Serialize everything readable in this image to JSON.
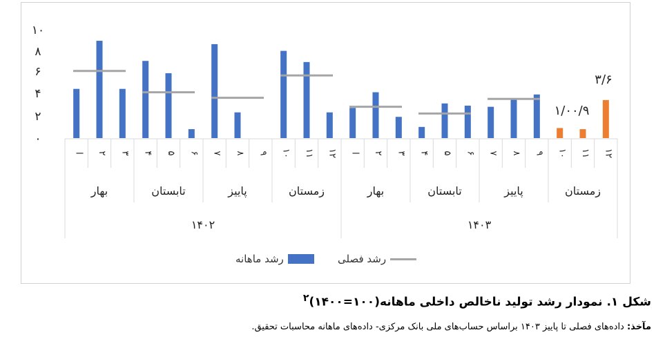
{
  "chart_data": {
    "type": "bar",
    "title": "",
    "ylim": [
      0,
      10
    ],
    "yticks": [
      "۰",
      "۲",
      "۴",
      "۶",
      "۸",
      "۱۰"
    ],
    "month_labels": [
      "ا",
      "۲",
      "۳",
      "۴",
      "۵",
      "۶",
      "۷",
      "۸",
      "۹",
      "۱۰",
      "۱۱",
      "۱۲"
    ],
    "years": [
      {
        "label": "۱۴۰۲",
        "seasons": [
          {
            "name": "بهار",
            "monthly": [
              4.4,
              8.7,
              4.4
            ],
            "seasonal": 6.0
          },
          {
            "name": "تابستان",
            "monthly": [
              6.9,
              5.8,
              0.8
            ],
            "seasonal": 4.1
          },
          {
            "name": "پاییز",
            "monthly": [
              8.4,
              2.3,
              0.0
            ],
            "seasonal": 3.6
          },
          {
            "name": "زمستان",
            "monthly": [
              7.8,
              6.8,
              2.3
            ],
            "seasonal": 5.6
          }
        ]
      },
      {
        "label": "۱۴۰۳",
        "seasons": [
          {
            "name": "بهار",
            "monthly": [
              2.7,
              4.1,
              1.9
            ],
            "seasonal": 2.8
          },
          {
            "name": "تابستان",
            "monthly": [
              1.0,
              3.1,
              2.9
            ],
            "seasonal": 2.2
          },
          {
            "name": "پاییز",
            "monthly": [
              2.8,
              3.5,
              3.9
            ],
            "seasonal": 3.5
          },
          {
            "name": "زمستان",
            "monthly": [
              0.9,
              0.8,
              3.4
            ],
            "seasonal": null,
            "estimated": true
          }
        ]
      }
    ],
    "annotations": {
      "left": "۱/۰۰/۹",
      "right": "۳/۶"
    },
    "series": [
      {
        "name": "رشد ماهانه",
        "color": "#4472c4"
      },
      {
        "name": "رشد فصلی",
        "color": "#a5a5a5"
      }
    ],
    "estimate_color": "#ed7d31",
    "legend_position": "bottom",
    "grid": false
  },
  "caption": {
    "title": "شکل ۱. نمودار رشد تولید ناخالص داخلی ماهانه(۱۰۰=۱۴۰۰)",
    "title_sup": "۲",
    "source_label": "مآخذ:",
    "source_text": " داده‌های فصلی تا پاییز ۱۴۰۳ براساس حساب‌های ملی بانک مرکزی- داده‌های ماهانه محاسبات تحقیق."
  }
}
